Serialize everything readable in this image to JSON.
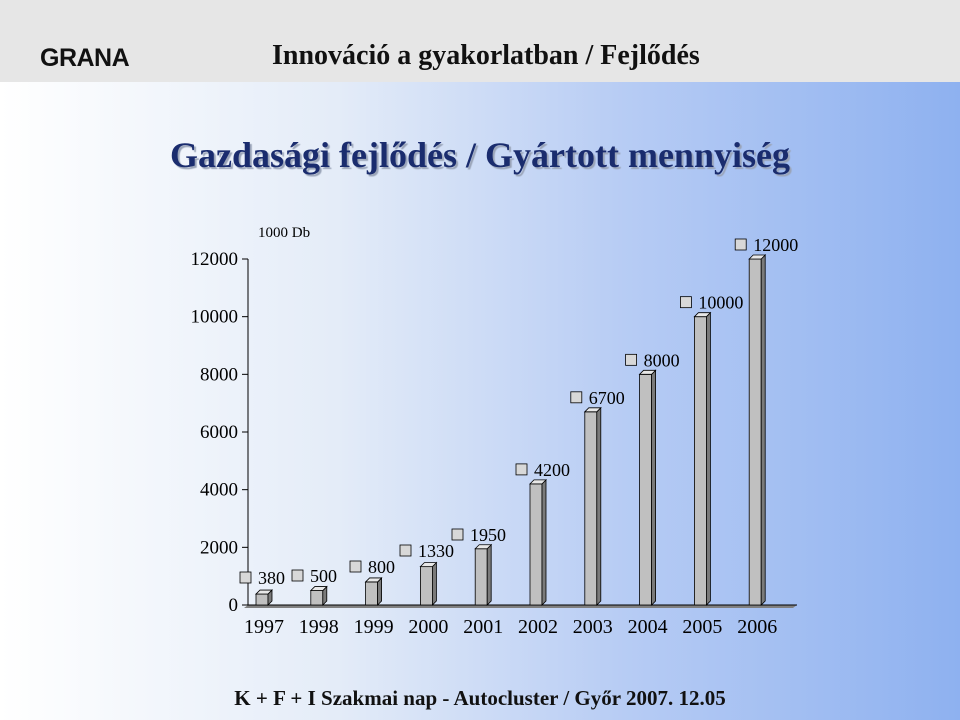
{
  "header": {
    "logo": "GRANA",
    "title": "Innováció a gyakorlatban / Fejlődés"
  },
  "slide_title": "Gazdasági fejlődés / Gyártott mennyiség",
  "footer": "K + F + I Szakmai nap  -  Autocluster  /  Győr 2007. 12.05",
  "colors": {
    "bar_face": "#c0c0c0",
    "bar_side": "#7a7a7a",
    "bar_top": "#e8e8e8"
  },
  "chart_data": {
    "type": "bar",
    "unit_label": "1000 Db",
    "categories": [
      "1997",
      "1998",
      "1999",
      "2000",
      "2001",
      "2002",
      "2003",
      "2004",
      "2005",
      "2006"
    ],
    "values": [
      380,
      500,
      800,
      1330,
      1950,
      4200,
      6700,
      8000,
      10000,
      12000
    ],
    "data_labels": [
      "380",
      "500",
      "800",
      "1330",
      "1950",
      "4200",
      "6700",
      "8000",
      "10000",
      "12000"
    ],
    "y_ticks": [
      "0",
      "2000",
      "4000",
      "6000",
      "8000",
      "10000",
      "12000"
    ],
    "ylim": [
      0,
      12000
    ],
    "grid": false,
    "legend": false
  }
}
